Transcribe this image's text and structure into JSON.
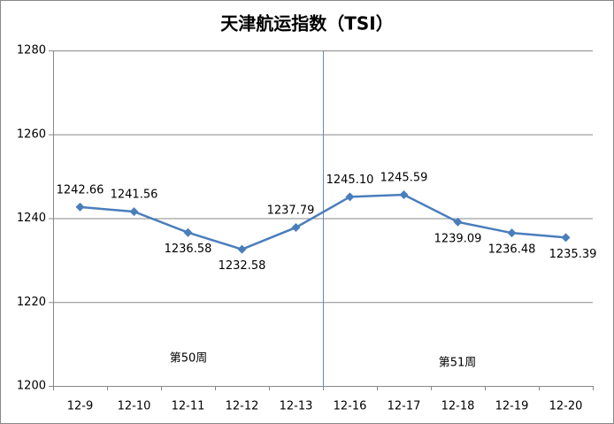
{
  "chart_data": {
    "type": "line",
    "title": "天津航运指数（TSI）",
    "categories": [
      "12-9",
      "12-10",
      "12-11",
      "12-12",
      "12-13",
      "12-16",
      "12-17",
      "12-18",
      "12-19",
      "12-20"
    ],
    "series": [
      {
        "name": "TSI",
        "color": "#4a7ebb",
        "values": [
          1242.66,
          1241.56,
          1236.58,
          1232.58,
          1237.79,
          1245.1,
          1245.59,
          1239.09,
          1236.48,
          1235.39
        ],
        "value_labels": [
          "1242.66",
          "1241.56",
          "1236.58",
          "1232.58",
          "1237.79",
          "1245.10",
          "1245.59",
          "1239.09",
          "1236.48",
          "1235.39"
        ]
      }
    ],
    "ylim": [
      1200,
      1280
    ],
    "yticks": [
      1200,
      1220,
      1240,
      1260,
      1280
    ],
    "grid": true,
    "annotations": [
      "第50周",
      "第51周"
    ]
  }
}
